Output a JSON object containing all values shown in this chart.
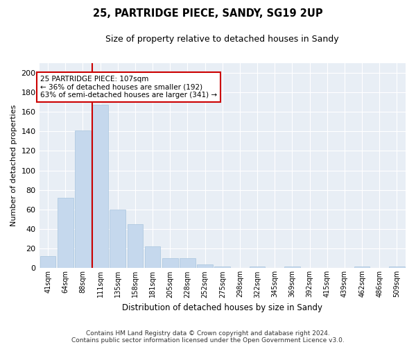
{
  "title": "25, PARTRIDGE PIECE, SANDY, SG19 2UP",
  "subtitle": "Size of property relative to detached houses in Sandy",
  "xlabel": "Distribution of detached houses by size in Sandy",
  "ylabel": "Number of detached properties",
  "bar_color": "#c5d8ed",
  "bar_edge_color": "#a8c4de",
  "background_color": "#e8eef5",
  "categories": [
    "41sqm",
    "64sqm",
    "88sqm",
    "111sqm",
    "135sqm",
    "158sqm",
    "181sqm",
    "205sqm",
    "228sqm",
    "252sqm",
    "275sqm",
    "298sqm",
    "322sqm",
    "345sqm",
    "369sqm",
    "392sqm",
    "415sqm",
    "439sqm",
    "462sqm",
    "486sqm",
    "509sqm"
  ],
  "bar_values": [
    12,
    72,
    141,
    167,
    60,
    45,
    22,
    10,
    10,
    4,
    2,
    0,
    2,
    0,
    2,
    0,
    0,
    0,
    2,
    0,
    2
  ],
  "ylim": [
    0,
    210
  ],
  "annotation_line1": "25 PARTRIDGE PIECE: 107sqm",
  "annotation_line2": "← 36% of detached houses are smaller (192)",
  "annotation_line3": "63% of semi-detached houses are larger (341) →",
  "annotation_box_color": "#cc0000",
  "red_line_index": 3,
  "footer_line1": "Contains HM Land Registry data © Crown copyright and database right 2024.",
  "footer_line2": "Contains public sector information licensed under the Open Government Licence v3.0.",
  "yticks": [
    0,
    20,
    40,
    60,
    80,
    100,
    120,
    140,
    160,
    180,
    200
  ]
}
